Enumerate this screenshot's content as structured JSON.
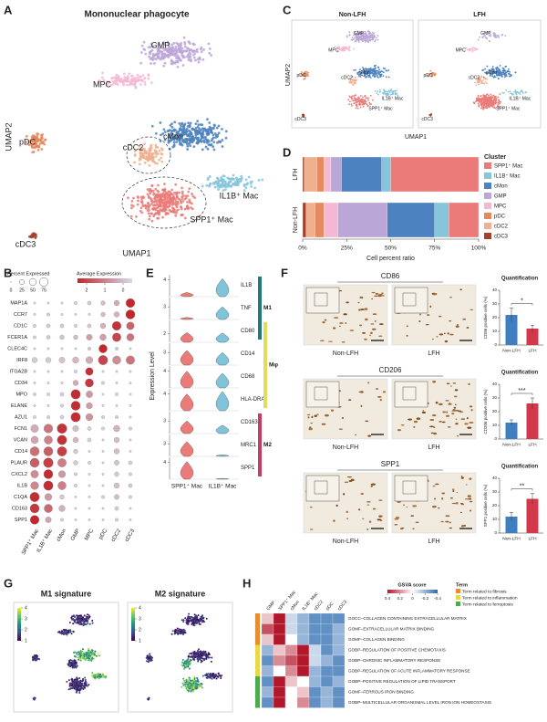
{
  "panel_labels": [
    "A",
    "B",
    "C",
    "D",
    "E",
    "F",
    "G",
    "H"
  ],
  "umap": {
    "title": "Mononuclear phagocyte",
    "xlabel": "UMAP1",
    "ylabel": "UMAP2"
  },
  "umap_split": {
    "panels": [
      "Non-LFH",
      "LFH"
    ],
    "xlabel": "UMAP1",
    "ylabel": "UMAP2"
  },
  "ihc": {
    "markers": [
      "CD86",
      "CD206",
      "SPP1"
    ],
    "groups": [
      "Non-LFH",
      "LFH"
    ]
  },
  "chart_data": [
    {
      "type": "stacked_bar_h",
      "categories": [
        "LFH",
        "Non-LFH"
      ],
      "xlim": [
        0,
        100
      ],
      "xticks": [
        {
          "value": 0,
          "label": "0%"
        },
        {
          "value": 25,
          "label": "25%"
        },
        {
          "value": 50,
          "label": "50%"
        },
        {
          "value": 75,
          "label": "75%"
        },
        {
          "value": 100,
          "label": "100%"
        }
      ],
      "xlabel": "Cell percent ratio",
      "legend_title": "Cluster",
      "series": [
        {
          "name": "SPP1⁺ Mac",
          "color": "#ea7b78",
          "values": [
            50,
            17
          ]
        },
        {
          "name": "IL1B⁺ Mac",
          "color": "#86c6dc",
          "values": [
            5,
            8
          ]
        },
        {
          "name": "cMon",
          "color": "#4d82c0",
          "values": [
            23,
            27
          ]
        },
        {
          "name": "GMP",
          "color": "#bba6d8",
          "values": [
            6,
            28
          ]
        },
        {
          "name": "MPC",
          "color": "#f4b8d3",
          "values": [
            4,
            8
          ]
        },
        {
          "name": "pDC",
          "color": "#e48a5e",
          "values": [
            4,
            5
          ]
        },
        {
          "name": "cDC2",
          "color": "#eeb08f",
          "values": [
            7,
            5
          ]
        },
        {
          "name": "cDC3",
          "color": "#a3412b",
          "values": [
            1,
            2
          ]
        }
      ]
    },
    {
      "type": "dotplot",
      "size_title": "Percent Expressed",
      "size_ticks": [
        0,
        25,
        50,
        75
      ],
      "color_title": "Average Expression",
      "clim": [
        -0.5,
        2.5
      ],
      "cticks": [
        2,
        1,
        0
      ],
      "low_color": "#d6dbe7",
      "high_color": "#c1272d",
      "columns": [
        "SPP1⁺ Mac",
        "IL1B⁺ Mac",
        "cMon",
        "GMP",
        "MPC",
        "pDC",
        "cDC2",
        "cDC3"
      ],
      "rows": [
        "MAP1A",
        "CCR7",
        "CD1C",
        "FCER1A",
        "CLEC4C",
        "IRF8",
        "ITGA2B",
        "CD34",
        "MPO",
        "ELANE",
        "AZU1",
        "FCN1",
        "VCAN",
        "CD14",
        "PLAUR",
        "CXCL2",
        "IL1B",
        "C1QA",
        "CD163",
        "SPP1"
      ],
      "expr": [
        [
          -0.4,
          -0.4,
          -0.4,
          -0.3,
          -0.2,
          0,
          0.3,
          2.5
        ],
        [
          -0.4,
          -0.3,
          -0.4,
          -0.4,
          -0.3,
          0,
          0.2,
          2.5
        ],
        [
          -0.3,
          -0.2,
          -0.2,
          -0.3,
          -0.2,
          0.2,
          2.3,
          1.5
        ],
        [
          -0.3,
          -0.2,
          -0.1,
          0,
          0.5,
          0.5,
          2,
          1.2
        ],
        [
          -0.4,
          -0.4,
          -0.4,
          -0.3,
          -0.2,
          2.5,
          -0.2,
          -0.3
        ],
        [
          -0.2,
          -0.2,
          -0.1,
          0.1,
          0.3,
          2,
          0.8,
          1.2
        ],
        [
          -0.4,
          -0.4,
          -0.4,
          -0.3,
          2.3,
          -0.3,
          -0.3,
          -0.4
        ],
        [
          -0.4,
          -0.4,
          -0.4,
          0.3,
          2.2,
          -0.3,
          -0.3,
          -0.4
        ],
        [
          -0.4,
          -0.4,
          -0.3,
          2.4,
          0.6,
          -0.4,
          -0.3,
          -0.4
        ],
        [
          -0.4,
          -0.4,
          -0.3,
          2.4,
          0.5,
          -0.4,
          -0.4,
          -0.4
        ],
        [
          -0.4,
          -0.3,
          -0.3,
          2.4,
          0.7,
          -0.3,
          -0.3,
          -0.4
        ],
        [
          0.3,
          1.2,
          2.3,
          0,
          -0.3,
          -0.4,
          0.2,
          -0.3
        ],
        [
          0.4,
          1,
          2.3,
          0.1,
          -0.3,
          -0.4,
          0,
          -0.4
        ],
        [
          1.3,
          1.6,
          2.1,
          -0.2,
          -0.4,
          -0.4,
          0,
          -0.4
        ],
        [
          1.6,
          2.1,
          1,
          -0.2,
          -0.3,
          -0.4,
          -0.1,
          -0.3
        ],
        [
          0.8,
          2.4,
          0.6,
          -0.3,
          -0.4,
          -0.4,
          -0.2,
          -0.3
        ],
        [
          0.9,
          2.4,
          1,
          -0.3,
          -0.4,
          -0.4,
          0,
          -0.2
        ],
        [
          2.4,
          0.6,
          -0.2,
          -0.4,
          -0.4,
          -0.3,
          0,
          -0.3
        ],
        [
          2.2,
          1.4,
          0.2,
          -0.4,
          -0.4,
          -0.4,
          -0.2,
          -0.4
        ],
        [
          2.5,
          0.4,
          -0.3,
          -0.4,
          -0.4,
          -0.4,
          -0.3,
          -0.4
        ]
      ],
      "pct": [
        [
          5,
          5,
          5,
          10,
          15,
          20,
          30,
          80
        ],
        [
          5,
          10,
          5,
          5,
          5,
          20,
          30,
          85
        ],
        [
          10,
          15,
          15,
          10,
          15,
          30,
          80,
          60
        ],
        [
          10,
          15,
          20,
          20,
          35,
          40,
          75,
          55
        ],
        [
          5,
          5,
          5,
          5,
          10,
          70,
          10,
          5
        ],
        [
          30,
          30,
          35,
          40,
          50,
          90,
          70,
          75
        ],
        [
          5,
          5,
          5,
          10,
          60,
          5,
          5,
          5
        ],
        [
          5,
          5,
          5,
          30,
          70,
          10,
          5,
          5
        ],
        [
          10,
          10,
          15,
          90,
          45,
          5,
          10,
          5
        ],
        [
          5,
          5,
          10,
          85,
          40,
          5,
          5,
          5
        ],
        [
          10,
          10,
          15,
          90,
          50,
          10,
          10,
          5
        ],
        [
          60,
          80,
          95,
          35,
          15,
          10,
          40,
          10
        ],
        [
          55,
          70,
          90,
          30,
          15,
          5,
          30,
          5
        ],
        [
          85,
          85,
          90,
          20,
          5,
          5,
          30,
          5
        ],
        [
          85,
          95,
          75,
          20,
          10,
          5,
          25,
          15
        ],
        [
          60,
          85,
          50,
          10,
          5,
          5,
          20,
          10
        ],
        [
          65,
          90,
          70,
          10,
          5,
          5,
          30,
          15
        ],
        [
          90,
          50,
          20,
          5,
          5,
          10,
          25,
          10
        ],
        [
          85,
          70,
          40,
          5,
          5,
          5,
          15,
          5
        ],
        [
          80,
          35,
          10,
          5,
          5,
          5,
          10,
          5
        ]
      ]
    },
    {
      "type": "violin",
      "ylabel": "Expression Level",
      "ylim": [
        0,
        5
      ],
      "genes": [
        "IL1B",
        "TNF",
        "CD80",
        "CD14",
        "CD68",
        "HLA-DRA",
        "CD163",
        "MRC1",
        "SPP1"
      ],
      "groups": [
        {
          "name": "SPP1⁺ Mac",
          "color": "#ea7b78"
        },
        {
          "name": "IL1B⁺ Mac",
          "color": "#7fc4d8"
        }
      ],
      "values": [
        [
          1,
          4.3
        ],
        [
          0.5,
          3
        ],
        [
          2.3,
          2.2
        ],
        [
          3.5,
          3
        ],
        [
          4,
          3.5
        ],
        [
          4,
          4.6
        ],
        [
          3,
          2
        ],
        [
          3.5,
          0.4
        ],
        [
          4.2,
          0.2
        ]
      ],
      "row_ticks": [
        4,
        3,
        2,
        3,
        4,
        4,
        3,
        3,
        4
      ],
      "modules": [
        {
          "label": "M1",
          "color": "#1f7a78"
        },
        {
          "label": "Mφ",
          "color": "#e3dc5e"
        },
        {
          "label": "M2",
          "color": "#c63d62"
        }
      ]
    },
    {
      "type": "bar",
      "title": "Quantification",
      "ylabel": "CD86 positive cells (%)",
      "categories": [
        "Non-LFH",
        "LFH"
      ],
      "values": [
        22,
        12
      ],
      "errors": [
        5,
        2.5
      ],
      "colors": [
        "#3f7fc0",
        "#d3374a"
      ],
      "ylim": [
        0,
        40
      ],
      "yticks": [
        0,
        10,
        20,
        30,
        40
      ],
      "annotation": "*"
    },
    {
      "type": "bar",
      "title": "Quantification",
      "ylabel": "CD206 positive cells (%)",
      "categories": [
        "Non-LFH",
        "LFH"
      ],
      "values": [
        12,
        26
      ],
      "errors": [
        2,
        4
      ],
      "colors": [
        "#3f7fc0",
        "#d3374a"
      ],
      "ylim": [
        0,
        40
      ],
      "yticks": [
        0,
        10,
        20,
        30,
        40
      ],
      "annotation": "***"
    },
    {
      "type": "bar",
      "title": "Quantification",
      "ylabel": "SPP1 positive cells (%)",
      "categories": [
        "Non-LFH",
        "LFH"
      ],
      "values": [
        12,
        25
      ],
      "errors": [
        3,
        4
      ],
      "colors": [
        "#3f7fc0",
        "#d3374a"
      ],
      "ylim": [
        0,
        40
      ],
      "yticks": [
        0,
        10,
        20,
        30,
        40
      ],
      "annotation": "**"
    },
    {
      "type": "feature",
      "title": "M1 signature",
      "clim": [
        1,
        4
      ],
      "cticks": [
        1,
        2,
        3,
        4
      ],
      "colors": [
        "#440154",
        "#3b528b",
        "#21918c",
        "#5ec962",
        "#fde725"
      ]
    },
    {
      "type": "feature",
      "title": "M2 signature",
      "clim": [
        1,
        4
      ],
      "cticks": [
        1,
        2,
        3,
        4
      ],
      "colors": [
        "#440154",
        "#3b528b",
        "#21918c",
        "#5ec962",
        "#fde725"
      ]
    },
    {
      "type": "heatmap",
      "colorbar_title": "GSVA score",
      "legend_title": "Term",
      "clim": [
        -0.4,
        0.4
      ],
      "cticks": [
        0.4,
        0.2,
        0,
        -0.2,
        -0.4
      ],
      "colors": [
        "#2c6bb0",
        "#ffffff",
        "#b2182b"
      ],
      "columns": [
        "GMP",
        "SPP1⁺ Mac",
        "cMon",
        "IL1B⁺ Mac",
        "cDC2",
        "pDC",
        "cDC3"
      ],
      "rows": [
        "GOCC–COLLAGEN CONTAINING EXTRACELLULAR MATRIX",
        "GOMF–EXTRACELLULAR MATRIX BINDING",
        "GOMF–COLLAGEN BINDING",
        "GOBP–REGULATION OF POSITIVE CHEMOTAXIS",
        "GOBP–CHRONIC INFLAMMATORY RESPONSE",
        "GOBP–REGULATION OF ACUTE INFLAMMATORY RESPONSE",
        "GOBP–POSITIVE REGULATION OF LIPID TRANSPORT",
        "GOMF–FERROUS IRON BINDING",
        "GOBP–MULTICELLULAR ORGANISMAL LEVEL IRON ION HOMEOSTASIS"
      ],
      "row_groups": [
        0,
        0,
        0,
        1,
        1,
        1,
        2,
        2,
        2
      ],
      "groups": [
        {
          "name": "Term related to fibrosis",
          "color": "#ef8a2e"
        },
        {
          "name": "Term related to inflammation",
          "color": "#e8d84a"
        },
        {
          "name": "Term related to ferroptosis",
          "color": "#4bab4e"
        }
      ],
      "values": [
        [
          0.1,
          0.4,
          -0.1,
          -0.2,
          -0.3,
          -0.3,
          -0.3
        ],
        [
          0.3,
          0.4,
          -0.1,
          -0.2,
          -0.3,
          -0.3,
          -0.2
        ],
        [
          0.1,
          0.4,
          0,
          -0.2,
          -0.3,
          -0.3,
          -0.2
        ],
        [
          -0.2,
          0.1,
          0.2,
          0.4,
          -0.1,
          -0.3,
          -0.2
        ],
        [
          -0.3,
          0.2,
          0.3,
          0.4,
          -0.1,
          -0.2,
          -0.3
        ],
        [
          -0.2,
          0,
          0.2,
          0.4,
          -0.2,
          -0.3,
          -0.3
        ],
        [
          -0.3,
          0.4,
          0.1,
          0,
          -0.2,
          -0.3,
          -0.2
        ],
        [
          -0.2,
          0.4,
          0,
          0.1,
          -0.3,
          -0.2,
          -0.3
        ],
        [
          -0.3,
          0.4,
          0,
          0.2,
          -0.3,
          -0.2,
          -0.3
        ]
      ]
    }
  ]
}
